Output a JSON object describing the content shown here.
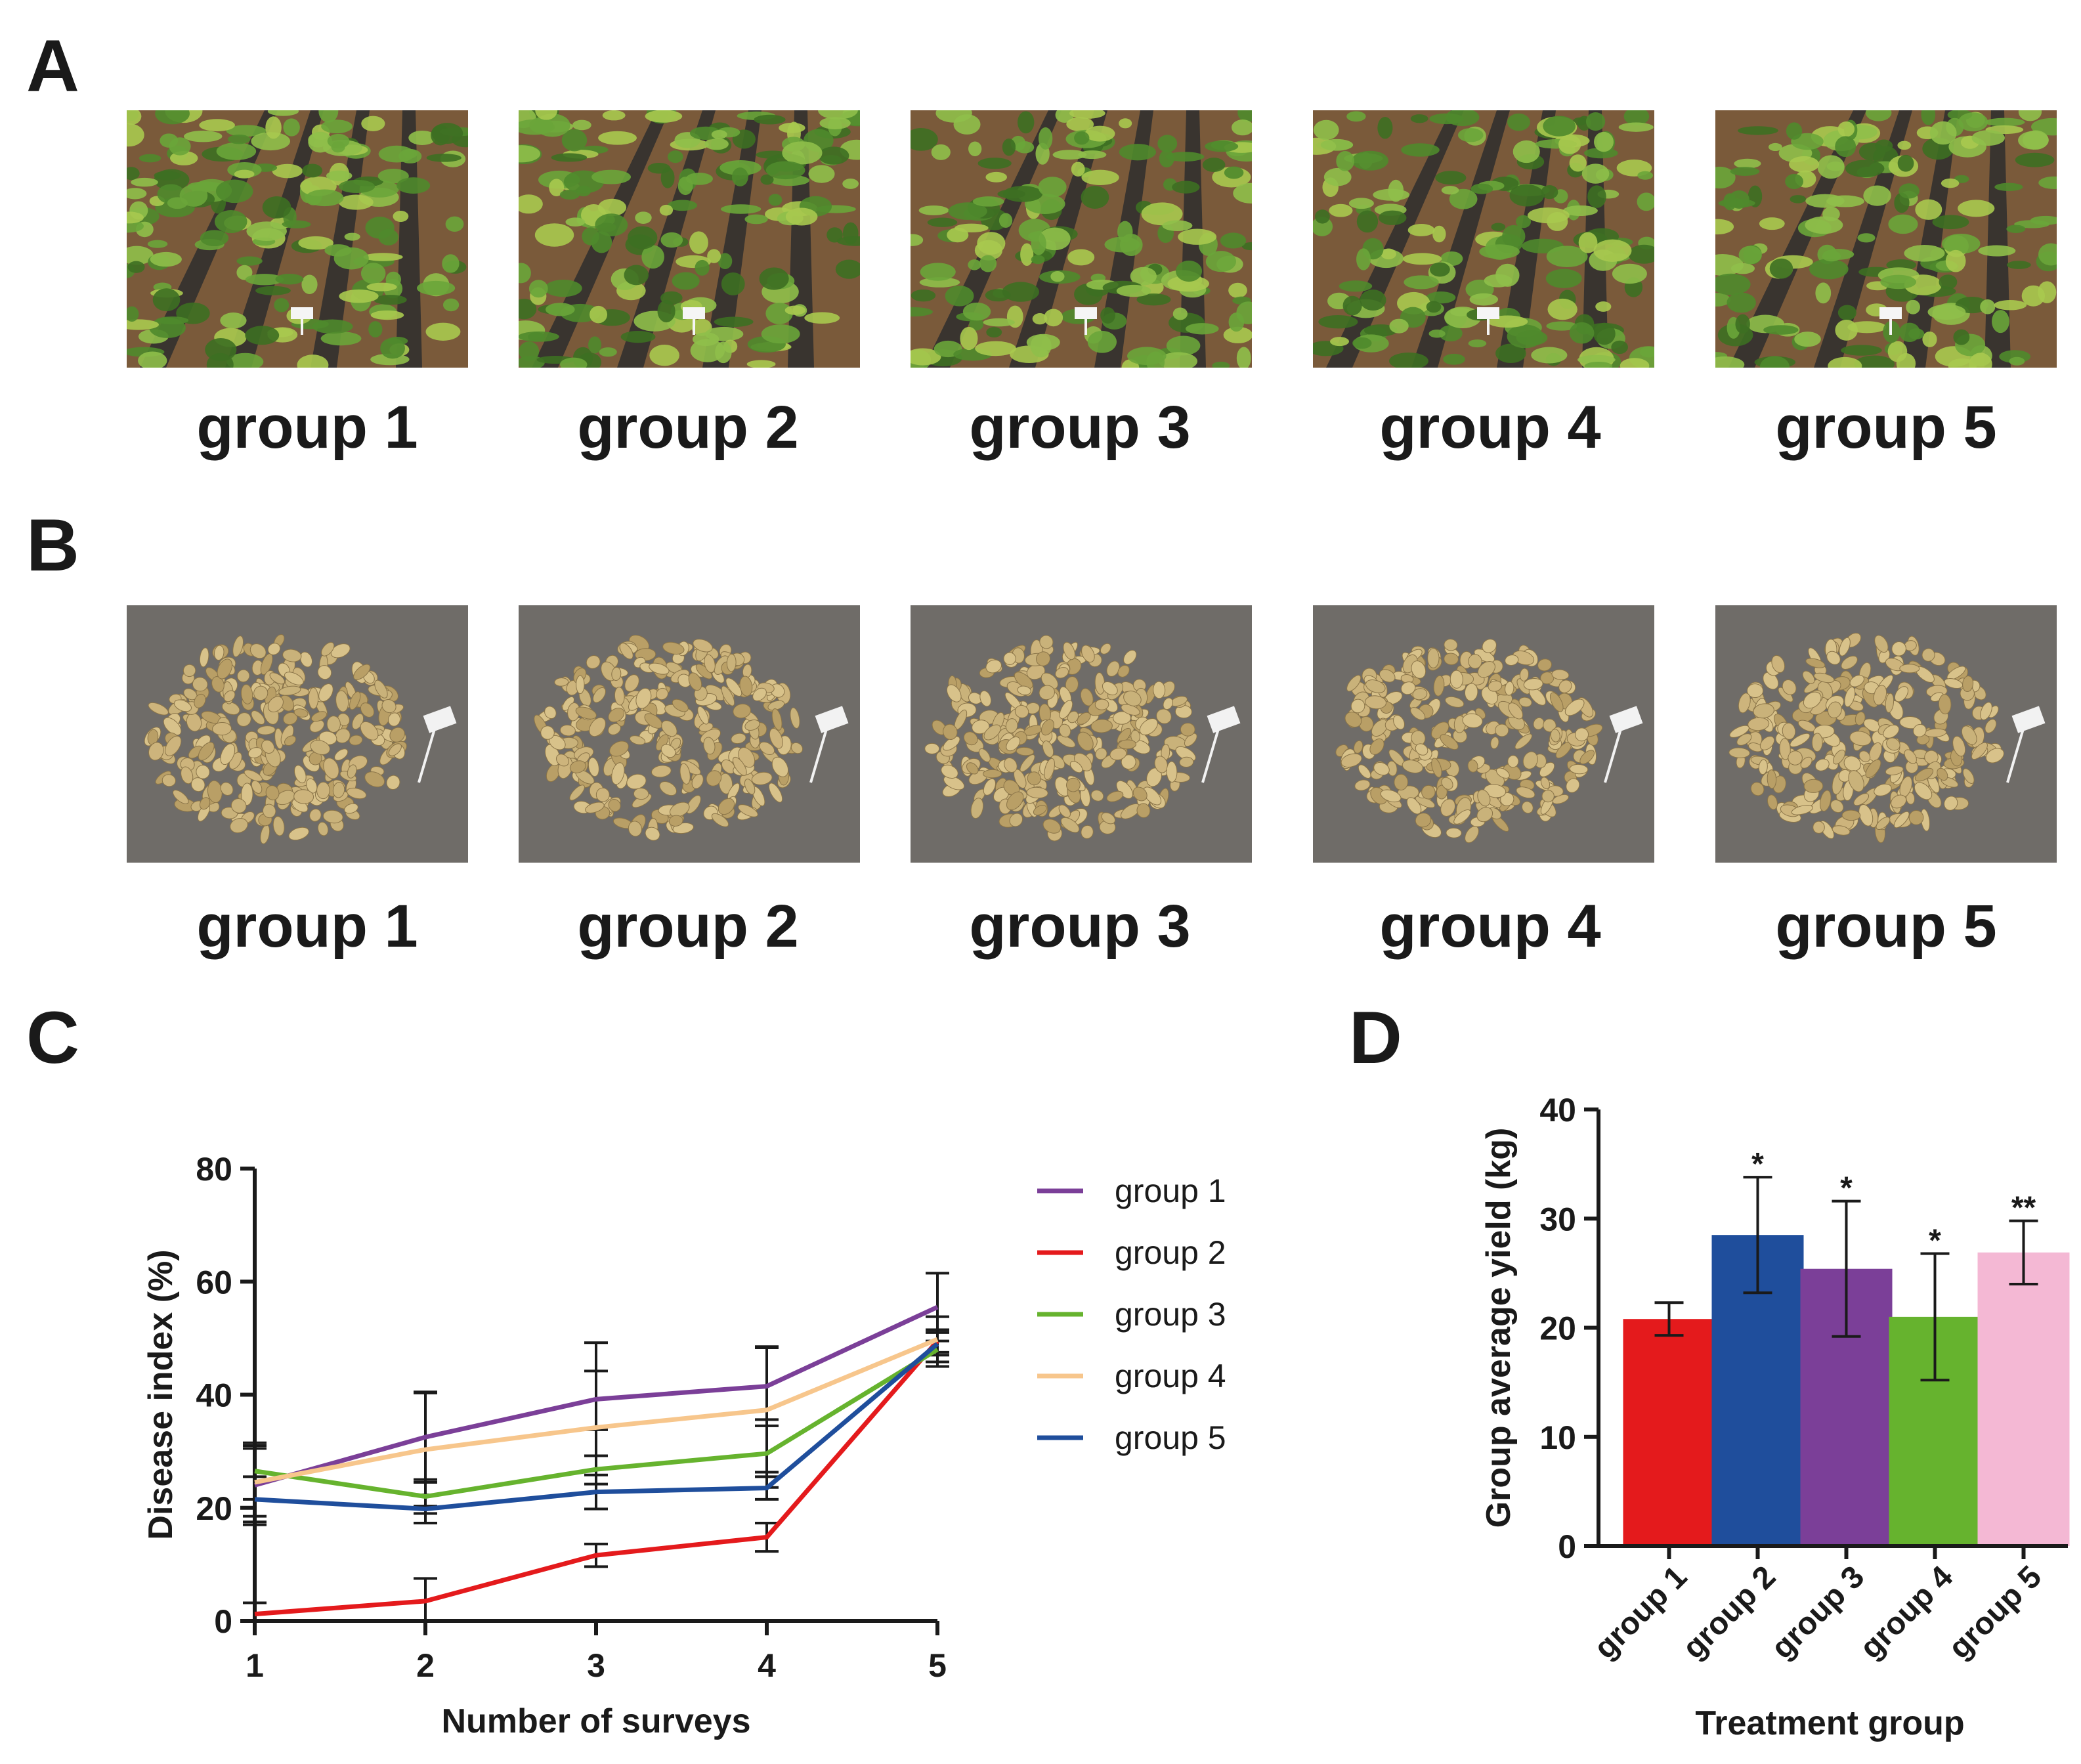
{
  "panels": {
    "a": {
      "letter": "A",
      "labels": [
        "group 1",
        "group 2",
        "group 3",
        "group 4",
        "group 5"
      ]
    },
    "b": {
      "letter": "B",
      "labels": [
        "group 1",
        "group 2",
        "group 3",
        "group 4",
        "group 5"
      ]
    },
    "c": {
      "letter": "C"
    },
    "d": {
      "letter": "D"
    }
  },
  "chart_data": [
    {
      "type": "line",
      "xlabel": "Number of surveys",
      "ylabel": "Disease index (%)",
      "x": [
        1,
        2,
        3,
        4,
        5
      ],
      "xticks": [
        "1",
        "2",
        "3",
        "4",
        "5"
      ],
      "ylim": [
        0,
        80
      ],
      "yticks": [
        "0",
        "20",
        "40",
        "60",
        "80"
      ],
      "legend_position": "right",
      "series": [
        {
          "name": "group 1",
          "color": "#7b3f98",
          "values": [
            24,
            32.5,
            39.2,
            41.5,
            55.5
          ],
          "errors": [
            7,
            8,
            10,
            7,
            6
          ]
        },
        {
          "name": "group 2",
          "color": "#e41a1c",
          "values": [
            1.2,
            3.5,
            11.6,
            14.8,
            49.5
          ],
          "errors": [
            2,
            4,
            2,
            2.5,
            2
          ]
        },
        {
          "name": "group 3",
          "color": "#66b32e",
          "values": [
            26.5,
            22,
            26.8,
            29.6,
            48
          ],
          "errors": [
            5,
            3,
            7,
            6,
            3
          ]
        },
        {
          "name": "group 4",
          "color": "#f7c68c",
          "values": [
            24.5,
            30.3,
            34.2,
            37.3,
            49.8
          ],
          "errors": [
            6,
            10,
            10,
            11,
            4
          ]
        },
        {
          "name": "group 5",
          "color": "#1f4e9c",
          "values": [
            21.5,
            19.8,
            22.8,
            23.5,
            49
          ],
          "errors": [
            4,
            2.5,
            3,
            2,
            2
          ]
        }
      ]
    },
    {
      "type": "bar",
      "xlabel": "Treatment group",
      "ylabel": "Group average yield (kg)",
      "categories": [
        "group 1",
        "group 2",
        "group 3",
        "group 4",
        "group 5"
      ],
      "values": [
        20.8,
        28.5,
        25.4,
        21,
        26.9
      ],
      "errors": [
        1.5,
        5.3,
        6.2,
        5.8,
        2.9
      ],
      "significance": [
        "",
        "*",
        "*",
        "*",
        "**"
      ],
      "colors": [
        "#e41a1c",
        "#1f4e9c",
        "#7b3f98",
        "#66b32e",
        "#f4b8d4"
      ],
      "ylim": [
        0,
        40
      ],
      "yticks": [
        "0",
        "10",
        "20",
        "30",
        "40"
      ]
    }
  ]
}
